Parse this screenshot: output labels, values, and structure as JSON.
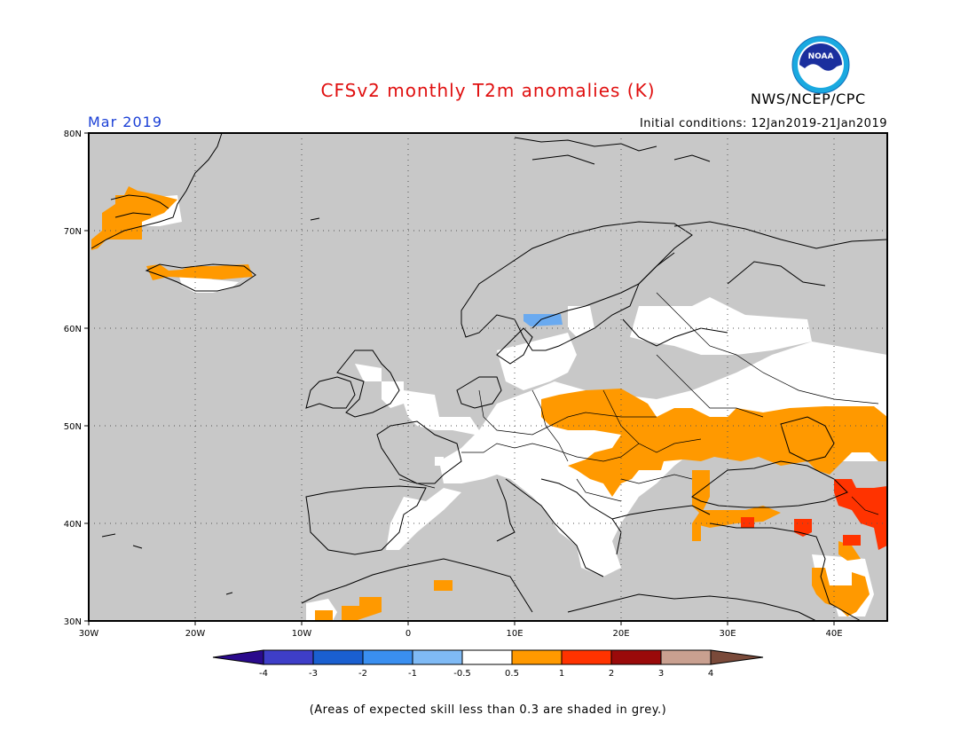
{
  "header": {
    "title": "CFSv2 monthly T2m anomalies (K)",
    "month": "Mar 2019",
    "initial_conditions": "Initial conditions: 12Jan2019-21Jan2019",
    "agency": "NWS/NCEP/CPC",
    "logo_text": "NOAA"
  },
  "map": {
    "region": "Europe",
    "lon_labels": [
      "30W",
      "20W",
      "10W",
      "0",
      "10E",
      "20E",
      "30E",
      "40E"
    ],
    "lat_labels": [
      "80N",
      "70N",
      "60N",
      "50N",
      "40N",
      "30N"
    ],
    "grid": "dotted",
    "colors": {
      "low_skill": "#c8c8c8",
      "neutral": "#ffffff",
      "plus_0_5_to_1": "#ff9900",
      "plus_1_to_2": "#ff3300",
      "minus_1_to_minus_0_5": "#6aaaf0"
    }
  },
  "colorbar": {
    "labels": [
      "-4",
      "-3",
      "-2",
      "-1",
      "-0.5",
      "0.5",
      "1",
      "2",
      "3",
      "4"
    ],
    "colors": [
      "#2a0a8c",
      "#3e3ec8",
      "#1a5fd0",
      "#3a8ff0",
      "#7fbaf5",
      "#ffffff",
      "#ff9900",
      "#ff3300",
      "#9a0a0a",
      "#c9a090",
      "#7a4a3a"
    ]
  },
  "footnote": "(Areas of expected skill less than 0.3 are shaded in grey.)"
}
